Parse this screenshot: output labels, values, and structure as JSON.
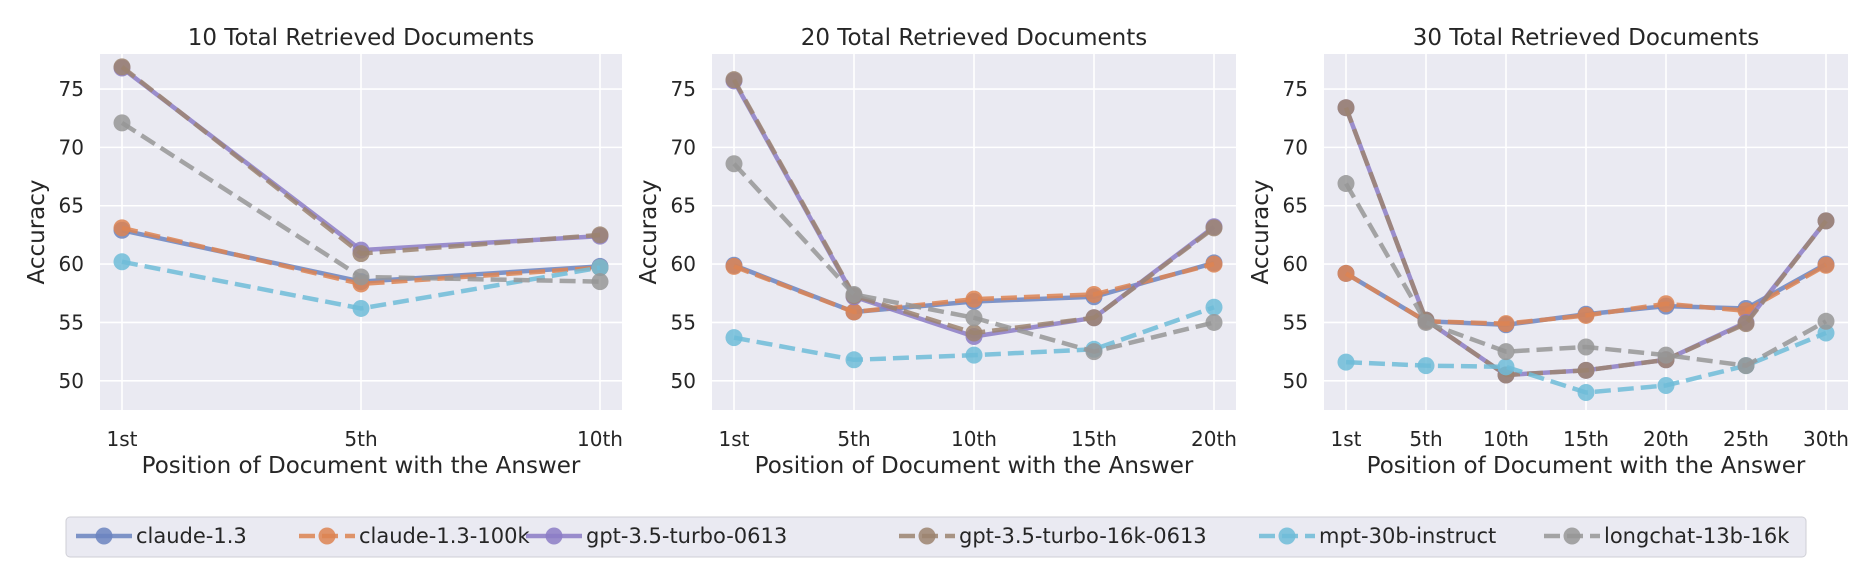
{
  "legend": [
    {
      "name": "claude-1.3",
      "color": "#6b84c0",
      "dashed": false
    },
    {
      "name": "claude-1.3-100k",
      "color": "#dd8452",
      "dashed": true
    },
    {
      "name": "gpt-3.5-turbo-0613",
      "color": "#8c7cc6",
      "dashed": false
    },
    {
      "name": "gpt-3.5-turbo-16k-0613",
      "color": "#9c8470",
      "dashed": true
    },
    {
      "name": "mpt-30b-instruct",
      "color": "#6fbcd8",
      "dashed": true
    },
    {
      "name": "longchat-13b-16k",
      "color": "#979797",
      "dashed": true
    }
  ],
  "chart_data": [
    {
      "type": "line",
      "title": "10 Total Retrieved Documents",
      "xlabel": "Position of Document with the Answer",
      "ylabel": "Accuracy",
      "x": [
        "1st",
        "5th",
        "10th"
      ],
      "ylim": [
        47.5,
        78
      ],
      "yticks": [
        50,
        55,
        60,
        65,
        70,
        75
      ],
      "grid": true,
      "series": [
        {
          "name": "claude-1.3",
          "values": [
            62.9,
            58.5,
            59.8
          ]
        },
        {
          "name": "claude-1.3-100k",
          "values": [
            63.1,
            58.3,
            59.7
          ]
        },
        {
          "name": "gpt-3.5-turbo-0613",
          "values": [
            76.8,
            61.2,
            62.4
          ]
        },
        {
          "name": "gpt-3.5-turbo-16k-0613",
          "values": [
            76.9,
            60.9,
            62.5
          ]
        },
        {
          "name": "mpt-30b-instruct",
          "values": [
            60.2,
            56.2,
            59.7
          ]
        },
        {
          "name": "longchat-13b-16k",
          "values": [
            72.1,
            58.9,
            58.5
          ]
        }
      ]
    },
    {
      "type": "line",
      "title": "20 Total Retrieved Documents",
      "xlabel": "Position of Document with the Answer",
      "ylabel": "Accuracy",
      "x": [
        "1st",
        "5th",
        "10th",
        "15th",
        "20th"
      ],
      "ylim": [
        47.5,
        78
      ],
      "yticks": [
        50,
        55,
        60,
        65,
        70,
        75
      ],
      "grid": true,
      "series": [
        {
          "name": "claude-1.3",
          "values": [
            59.9,
            55.9,
            56.8,
            57.2,
            60.1
          ]
        },
        {
          "name": "claude-1.3-100k",
          "values": [
            59.8,
            55.9,
            57.0,
            57.4,
            60.0
          ]
        },
        {
          "name": "gpt-3.5-turbo-0613",
          "values": [
            75.7,
            57.2,
            53.8,
            55.4,
            63.2
          ]
        },
        {
          "name": "gpt-3.5-turbo-16k-0613",
          "values": [
            75.8,
            57.3,
            54.1,
            55.4,
            63.1
          ]
        },
        {
          "name": "mpt-30b-instruct",
          "values": [
            53.7,
            51.8,
            52.2,
            52.7,
            56.3
          ]
        },
        {
          "name": "longchat-13b-16k",
          "values": [
            68.6,
            57.4,
            55.4,
            52.5,
            55.0
          ]
        }
      ]
    },
    {
      "type": "line",
      "title": "30 Total Retrieved Documents",
      "xlabel": "Position of Document with the Answer",
      "ylabel": "Accuracy",
      "x": [
        "1st",
        "5th",
        "10th",
        "15th",
        "20th",
        "25th",
        "30th"
      ],
      "ylim": [
        47.5,
        78
      ],
      "yticks": [
        50,
        55,
        60,
        65,
        70,
        75
      ],
      "grid": true,
      "series": [
        {
          "name": "claude-1.3",
          "values": [
            59.2,
            55.1,
            54.8,
            55.7,
            56.4,
            56.2,
            60.0
          ]
        },
        {
          "name": "claude-1.3-100k",
          "values": [
            59.2,
            55.1,
            54.9,
            55.6,
            56.6,
            56.0,
            59.9
          ]
        },
        {
          "name": "gpt-3.5-turbo-0613",
          "values": [
            73.4,
            55.2,
            50.5,
            50.9,
            51.8,
            55.0,
            63.7
          ]
        },
        {
          "name": "gpt-3.5-turbo-16k-0613",
          "values": [
            73.4,
            55.2,
            50.5,
            50.9,
            51.8,
            54.9,
            63.7
          ]
        },
        {
          "name": "mpt-30b-instruct",
          "values": [
            51.6,
            51.3,
            51.2,
            49.0,
            49.6,
            51.3,
            54.1
          ]
        },
        {
          "name": "longchat-13b-16k",
          "values": [
            66.9,
            55.0,
            52.5,
            52.9,
            52.2,
            51.3,
            55.1
          ]
        }
      ]
    }
  ]
}
